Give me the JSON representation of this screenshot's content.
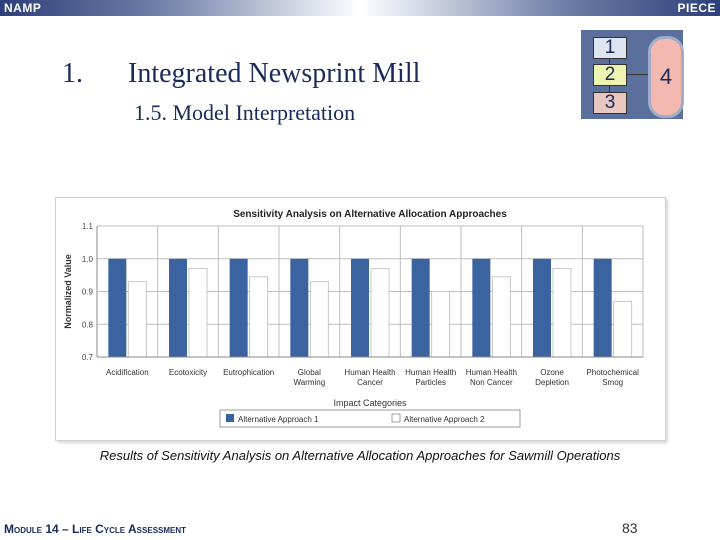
{
  "header": {
    "left": "NAMP",
    "right": "PIECE"
  },
  "slide": {
    "number": "1.",
    "title": "Integrated Newsprint Mill",
    "subtitle": "1.5. Model Interpretation"
  },
  "steps": {
    "s1": "1",
    "s2": "2",
    "s3": "3",
    "s4": "4"
  },
  "chart_data": {
    "type": "bar",
    "title": "Sensitivity Analysis on Alternative Allocation Approaches",
    "xlabel": "Impact Categories",
    "ylabel": "Normalized Value",
    "ylim": [
      0.7,
      1.1
    ],
    "yticks": [
      "0.7",
      "0.8",
      "0.9",
      "1.0",
      "1.1"
    ],
    "grid": true,
    "legend_position": "bottom",
    "categories": [
      [
        "Acidification"
      ],
      [
        "Ecotoxicity"
      ],
      [
        "Eutrophication"
      ],
      [
        "Global",
        "Warming"
      ],
      [
        "Human Health",
        "Cancer"
      ],
      [
        "Human Health",
        "Particles"
      ],
      [
        "Human Health",
        "Non Cancer"
      ],
      [
        "Ozone",
        "Depletion"
      ],
      [
        "Photochemical",
        "Smog"
      ]
    ],
    "series": [
      {
        "name": "Alternative Approach 1",
        "values": [
          1.0,
          1.0,
          1.0,
          1.0,
          1.0,
          1.0,
          1.0,
          1.0,
          1.0
        ]
      },
      {
        "name": "Alternative Approach 2",
        "values": [
          0.93,
          0.97,
          0.945,
          0.93,
          0.97,
          0.9,
          0.945,
          0.97,
          0.87
        ]
      }
    ],
    "colors": {
      "series1": "#3a63a0",
      "series2": "#ffffff"
    }
  },
  "caption": "Results of Sensitivity Analysis on Alternative Allocation Approaches for Sawmill Operations",
  "footer": {
    "module": "Module 14 – Life Cycle Assessment",
    "page": "83"
  }
}
